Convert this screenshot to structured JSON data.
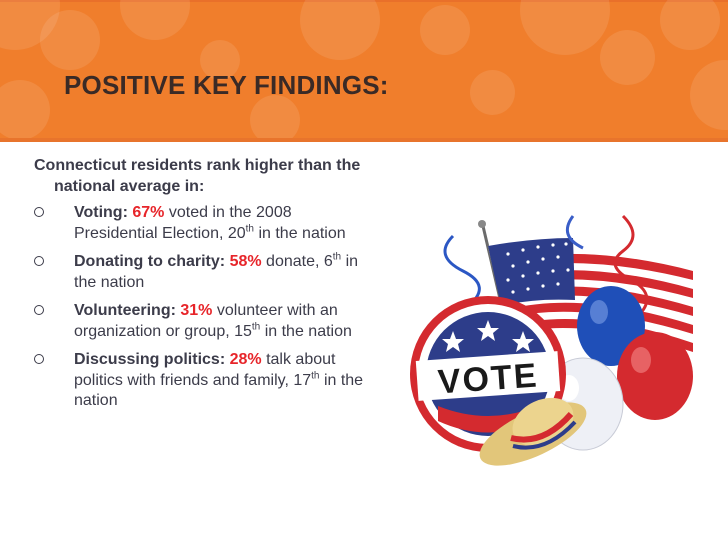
{
  "slide": {
    "title": "POSITIVE KEY FINDINGS:",
    "intro": "Connecticut residents rank higher than the national average in:",
    "items": [
      {
        "label": "Voting:",
        "pct": "67%",
        "pre": "voted in the 2008 Presidential Election, 20",
        "sup": "th",
        "post": "in the nation"
      },
      {
        "label": "Donating to charity:",
        "pct": "58%",
        "pre": "donate, 6",
        "sup": "th",
        "post": "in the nation"
      },
      {
        "label": "Volunteering:",
        "pct": "31%",
        "pre": "volunteer with an organization or group, 15",
        "sup": "th",
        "post": "in the nation"
      },
      {
        "label": "Discussing politics:",
        "pct": "28%",
        "pre": "talk about politics with friends and family, 17",
        "sup": "th",
        "post": "in the nation"
      }
    ],
    "image": {
      "button_text": "VOTE"
    }
  },
  "colors": {
    "header": "#f07e2c",
    "accent": "#e7252a",
    "text": "#3c3c4a"
  }
}
